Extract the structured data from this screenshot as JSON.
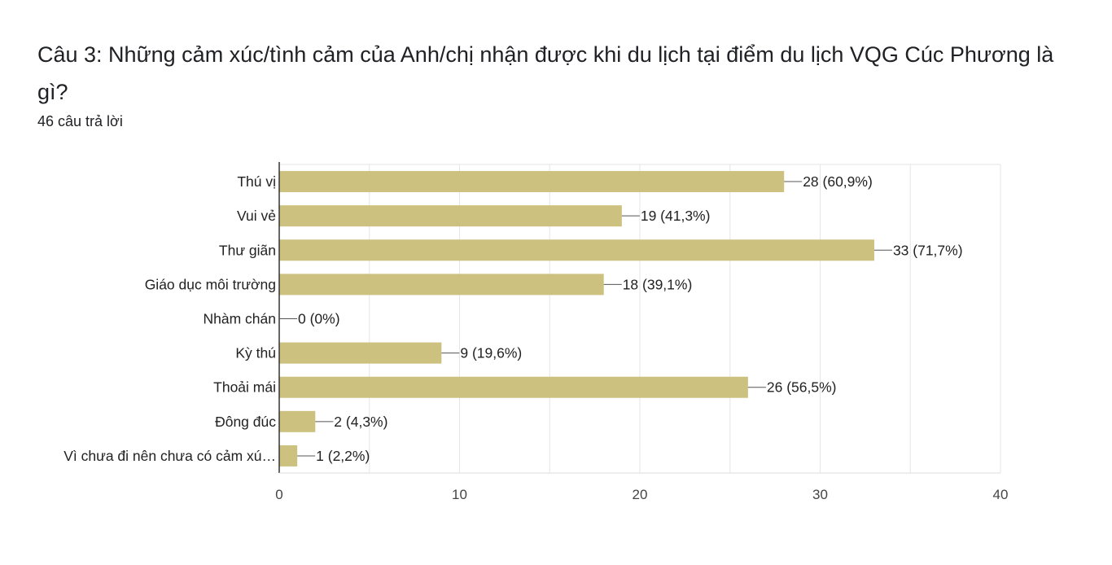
{
  "question": {
    "title": "Câu 3: Những cảm xúc/tình cảm của Anh/chị nhận được khi du lịch tại điểm du lịch VQG Cúc Phương là gì?",
    "response_count": "46 câu trả lời"
  },
  "chart_data": {
    "type": "bar",
    "orientation": "horizontal",
    "categories": [
      "Thú vị",
      "Vui vẻ",
      "Thư giãn",
      "Giáo dục môi trường",
      "Nhàm chán",
      "Kỳ thú",
      "Thoải mái",
      "Đông đúc",
      "Vì chưa đi nên chưa có cảm xú…"
    ],
    "values": [
      28,
      19,
      33,
      18,
      0,
      9,
      26,
      2,
      1
    ],
    "value_labels": [
      "28 (60,9%)",
      "19 (41,3%)",
      "33 (71,7%)",
      "18 (39,1%)",
      "0 (0%)",
      "9 (19,6%)",
      "26 (56,5%)",
      "2 (4,3%)",
      "1 (2,2%)"
    ],
    "xlim": [
      0,
      40
    ],
    "xticks": [
      0,
      10,
      20,
      30,
      40
    ],
    "grid": true,
    "bar_color": "#cdc17f",
    "grid_color": "#e6e6e6",
    "axis_color": "#333333"
  }
}
